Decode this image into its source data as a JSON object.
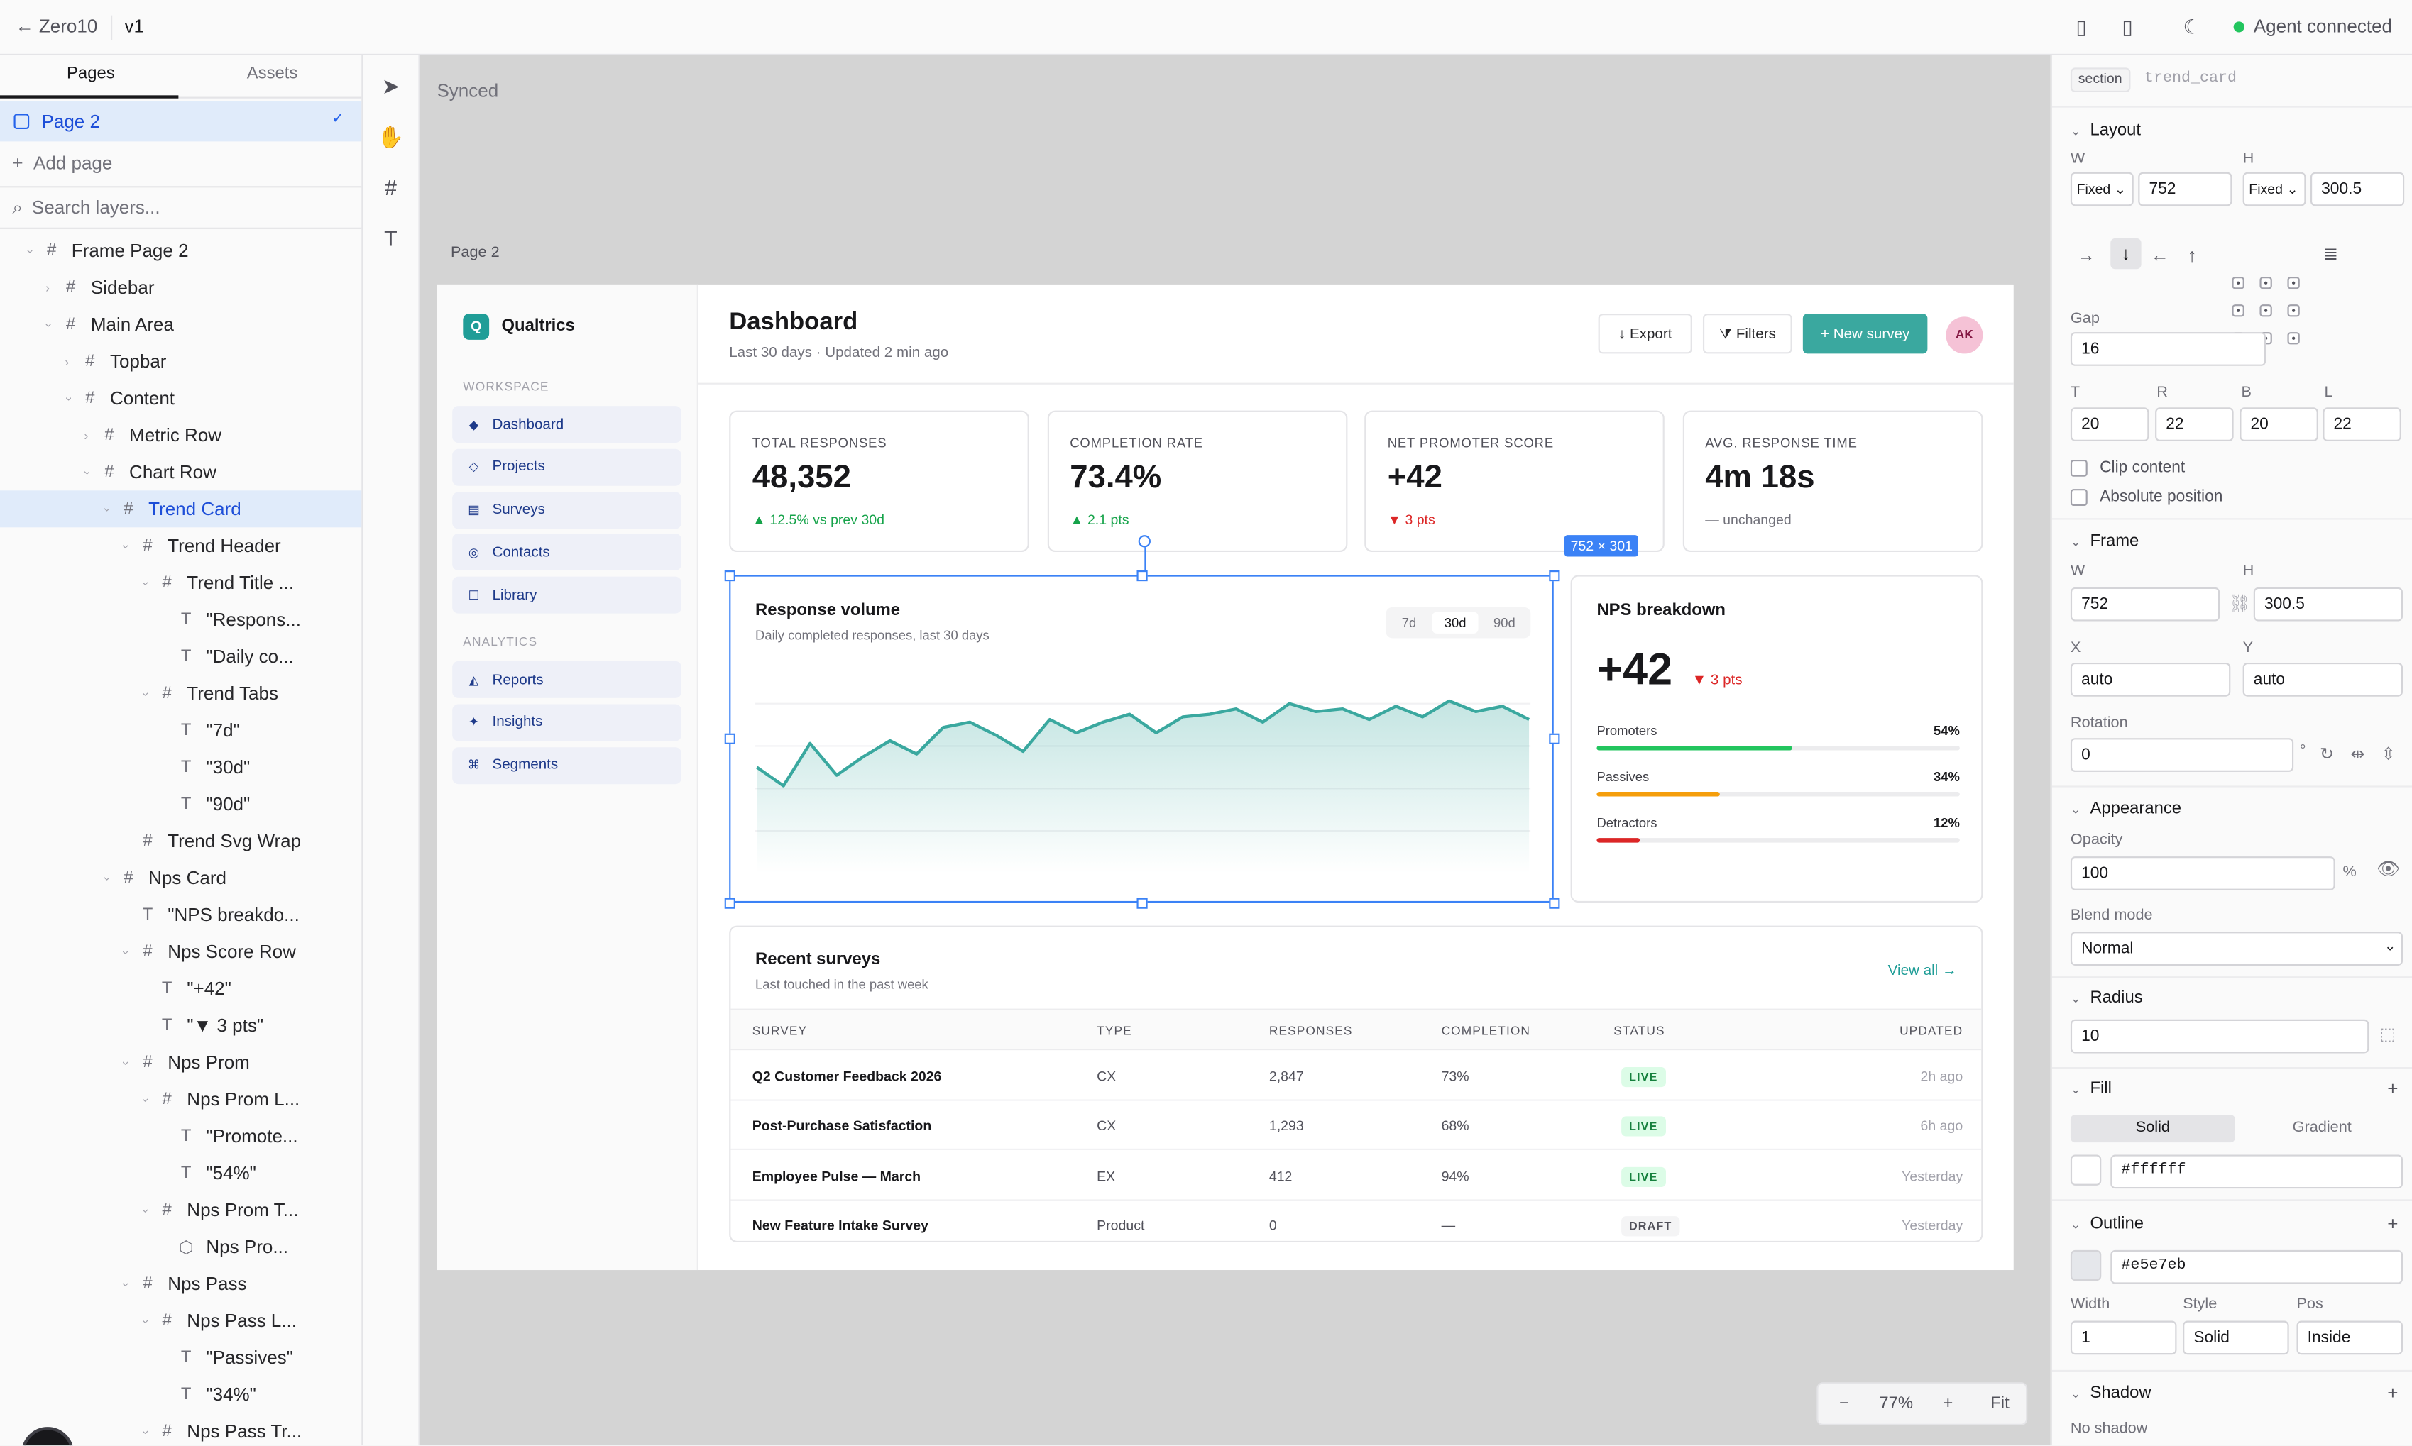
{
  "topbar": {
    "back_label": "← Zero10",
    "version": "v1",
    "agent_status": "Agent connected"
  },
  "left_panel": {
    "tabs": [
      "Pages",
      "Assets"
    ],
    "current_page": "Page 2",
    "add_page": "Add page",
    "search_placeholder": "Search layers...",
    "layers": [
      {
        "label": "Frame Page 2",
        "depth": 1,
        "icon": "frame-icon",
        "open": true
      },
      {
        "label": "Sidebar",
        "depth": 2,
        "icon": "frame-icon",
        "open": false
      },
      {
        "label": "Main Area",
        "depth": 2,
        "icon": "frame-icon",
        "open": true
      },
      {
        "label": "Topbar",
        "depth": 3,
        "icon": "frame-icon",
        "open": false
      },
      {
        "label": "Content",
        "depth": 3,
        "icon": "frame-icon",
        "open": true
      },
      {
        "label": "Metric Row",
        "depth": 4,
        "icon": "frame-icon",
        "open": false
      },
      {
        "label": "Chart Row",
        "depth": 4,
        "icon": "frame-icon",
        "open": true
      },
      {
        "label": "Trend Card",
        "depth": 5,
        "icon": "frame-icon",
        "open": true,
        "selected": true
      },
      {
        "label": "Trend Header",
        "depth": 6,
        "icon": "frame-icon",
        "open": true
      },
      {
        "label": "Trend Title ...",
        "depth": 7,
        "icon": "frame-icon",
        "open": true
      },
      {
        "label": "\"Respons...",
        "depth": 8,
        "icon": "text-icon"
      },
      {
        "label": "\"Daily co...",
        "depth": 8,
        "icon": "text-icon"
      },
      {
        "label": "Trend Tabs",
        "depth": 7,
        "icon": "frame-icon",
        "open": true
      },
      {
        "label": "\"7d\"",
        "depth": 8,
        "icon": "text-icon"
      },
      {
        "label": "\"30d\"",
        "depth": 8,
        "icon": "text-icon"
      },
      {
        "label": "\"90d\"",
        "depth": 8,
        "icon": "text-icon"
      },
      {
        "label": "Trend Svg Wrap",
        "depth": 6,
        "icon": "frame-icon"
      },
      {
        "label": "Nps Card",
        "depth": 5,
        "icon": "frame-icon",
        "open": true
      },
      {
        "label": "\"NPS breakdo...",
        "depth": 6,
        "icon": "text-icon"
      },
      {
        "label": "Nps Score Row",
        "depth": 6,
        "icon": "frame-icon",
        "open": true
      },
      {
        "label": "\"+42\"",
        "depth": 7,
        "icon": "text-icon"
      },
      {
        "label": "\"▼ 3 pts\"",
        "depth": 7,
        "icon": "text-icon"
      },
      {
        "label": "Nps Prom",
        "depth": 6,
        "icon": "frame-icon",
        "open": true
      },
      {
        "label": "Nps Prom L...",
        "depth": 7,
        "icon": "frame-icon",
        "open": true
      },
      {
        "label": "\"Promote...",
        "depth": 8,
        "icon": "text-icon"
      },
      {
        "label": "\"54%\"",
        "depth": 8,
        "icon": "text-icon"
      },
      {
        "label": "Nps Prom T...",
        "depth": 7,
        "icon": "frame-icon",
        "open": true
      },
      {
        "label": "Nps Pro...",
        "depth": 8,
        "icon": "component-icon"
      },
      {
        "label": "Nps Pass",
        "depth": 6,
        "icon": "frame-icon",
        "open": true
      },
      {
        "label": "Nps Pass L...",
        "depth": 7,
        "icon": "frame-icon",
        "open": true
      },
      {
        "label": "\"Passives\"",
        "depth": 8,
        "icon": "text-icon"
      },
      {
        "label": "\"34%\"",
        "depth": 8,
        "icon": "text-icon"
      },
      {
        "label": "Nps Pass Tr...",
        "depth": 7,
        "icon": "frame-icon",
        "open": true
      }
    ]
  },
  "canvas": {
    "status": "Synced",
    "frame_label": "Page 2",
    "selection_size": "752 × 301",
    "zoom": {
      "minus": "−",
      "level": "77%",
      "plus": "+",
      "fit": "Fit"
    }
  },
  "dashboard": {
    "brand": "Qualtrics",
    "brand_initial": "Q",
    "workspace_label": "WORKSPACE",
    "workspace_items": [
      {
        "label": "Dashboard",
        "icon": "◆"
      },
      {
        "label": "Projects",
        "icon": "◇"
      },
      {
        "label": "Surveys",
        "icon": "▤"
      },
      {
        "label": "Contacts",
        "icon": "◎"
      },
      {
        "label": "Library",
        "icon": "☐"
      }
    ],
    "analytics_label": "ANALYTICS",
    "analytics_items": [
      {
        "label": "Reports",
        "icon": "◭"
      },
      {
        "label": "Insights",
        "icon": "✦"
      },
      {
        "label": "Segments",
        "icon": "⌘"
      }
    ],
    "title": "Dashboard",
    "subtitle": "Last 30 days · Updated 2 min ago",
    "buttons": {
      "export": "↓ Export",
      "filters": "⧩ Filters",
      "new_survey": "+ New survey"
    },
    "avatar": "AK",
    "metrics": [
      {
        "label": "TOTAL RESPONSES",
        "value": "48,352",
        "delta": "▲ 12.5% vs prev 30d",
        "trend": "up"
      },
      {
        "label": "COMPLETION RATE",
        "value": "73.4%",
        "delta": "▲ 2.1 pts",
        "trend": "up"
      },
      {
        "label": "NET PROMOTER SCORE",
        "value": "+42",
        "delta": "▼ 3 pts",
        "trend": "down"
      },
      {
        "label": "AVG. RESPONSE TIME",
        "value": "4m 18s",
        "delta": "— unchanged",
        "trend": "flat"
      }
    ],
    "trend": {
      "title": "Response volume",
      "subtitle": "Daily completed responses, last 30 days",
      "tabs": [
        "7d",
        "30d",
        "90d"
      ],
      "active_tab": "30d"
    },
    "nps": {
      "title": "NPS breakdown",
      "score": "+42",
      "delta": "▼ 3 pts",
      "rows": [
        {
          "label": "Promoters",
          "pct": "54%",
          "value": 0.54,
          "color": "#22c55e"
        },
        {
          "label": "Passives",
          "pct": "34%",
          "value": 0.34,
          "color": "#f59e0b"
        },
        {
          "label": "Detractors",
          "pct": "12%",
          "value": 0.12,
          "color": "#dc2626"
        }
      ]
    },
    "surveys": {
      "title": "Recent surveys",
      "subtitle": "Last touched in the past week",
      "view_all": "View all →",
      "columns": [
        "SURVEY",
        "TYPE",
        "RESPONSES",
        "COMPLETION",
        "STATUS",
        "UPDATED"
      ],
      "rows": [
        [
          "Q2 Customer Feedback 2026",
          "CX",
          "2,847",
          "73%",
          "LIVE",
          "2h ago"
        ],
        [
          "Post-Purchase Satisfaction",
          "CX",
          "1,293",
          "68%",
          "LIVE",
          "6h ago"
        ],
        [
          "Employee Pulse — March",
          "EX",
          "412",
          "94%",
          "LIVE",
          "Yesterday"
        ],
        [
          "New Feature Intake Survey",
          "Product",
          "0",
          "—",
          "DRAFT",
          "Yesterday"
        ]
      ]
    }
  },
  "chart_data": {
    "type": "area",
    "title": "Response volume",
    "x": [
      1,
      2,
      3,
      4,
      5,
      6,
      7,
      8,
      9,
      10,
      11,
      12,
      13,
      14,
      15,
      16,
      17,
      18,
      19,
      20,
      21,
      22,
      23,
      24,
      25,
      26,
      27,
      28,
      29,
      30
    ],
    "values": [
      40,
      33,
      49,
      37,
      44,
      50,
      45,
      55,
      57,
      52,
      46,
      58,
      53,
      57,
      60,
      53,
      59,
      60,
      62,
      57,
      64,
      61,
      62,
      58,
      63,
      59,
      65,
      61,
      63,
      58
    ],
    "ylim": [
      0,
      80
    ],
    "grid": true,
    "color": "#3aa89f"
  },
  "right_panel": {
    "tag": "section",
    "element_name": "trend_card",
    "layout": {
      "title": "Layout",
      "w_label": "W",
      "w_mode": "Fixed ⌄",
      "w_value": "752",
      "h_label": "H",
      "h_mode": "Fixed ⌄",
      "h_value": "300.5",
      "gap_label": "Gap",
      "gap": "16",
      "padding_labels": [
        "T",
        "R",
        "B",
        "L"
      ],
      "padding": [
        "20",
        "22",
        "20",
        "22"
      ],
      "clip": "Clip content",
      "absolute": "Absolute position"
    },
    "frame": {
      "title": "Frame",
      "w_label": "W",
      "w": "752",
      "h_label": "H",
      "h": "300.5",
      "x_label": "X",
      "x": "auto",
      "y_label": "Y",
      "y": "auto",
      "rotation_label": "Rotation",
      "rotation": "0",
      "degree": "°"
    },
    "appearance": {
      "title": "Appearance",
      "opacity_label": "Opacity",
      "opacity": "100",
      "pct": "%",
      "blend_label": "Blend mode",
      "blend": "Normal"
    },
    "radius": {
      "title": "Radius",
      "value": "10"
    },
    "fill": {
      "title": "Fill",
      "solid": "Solid",
      "gradient": "Gradient",
      "color": "#ffffff"
    },
    "outline": {
      "title": "Outline",
      "color": "#e5e7eb",
      "width_label": "Width",
      "width": "1",
      "style_label": "Style",
      "style": "Solid",
      "pos_label": "Pos",
      "pos": "Inside"
    },
    "shadow": {
      "title": "Shadow",
      "value": "No shadow"
    }
  }
}
